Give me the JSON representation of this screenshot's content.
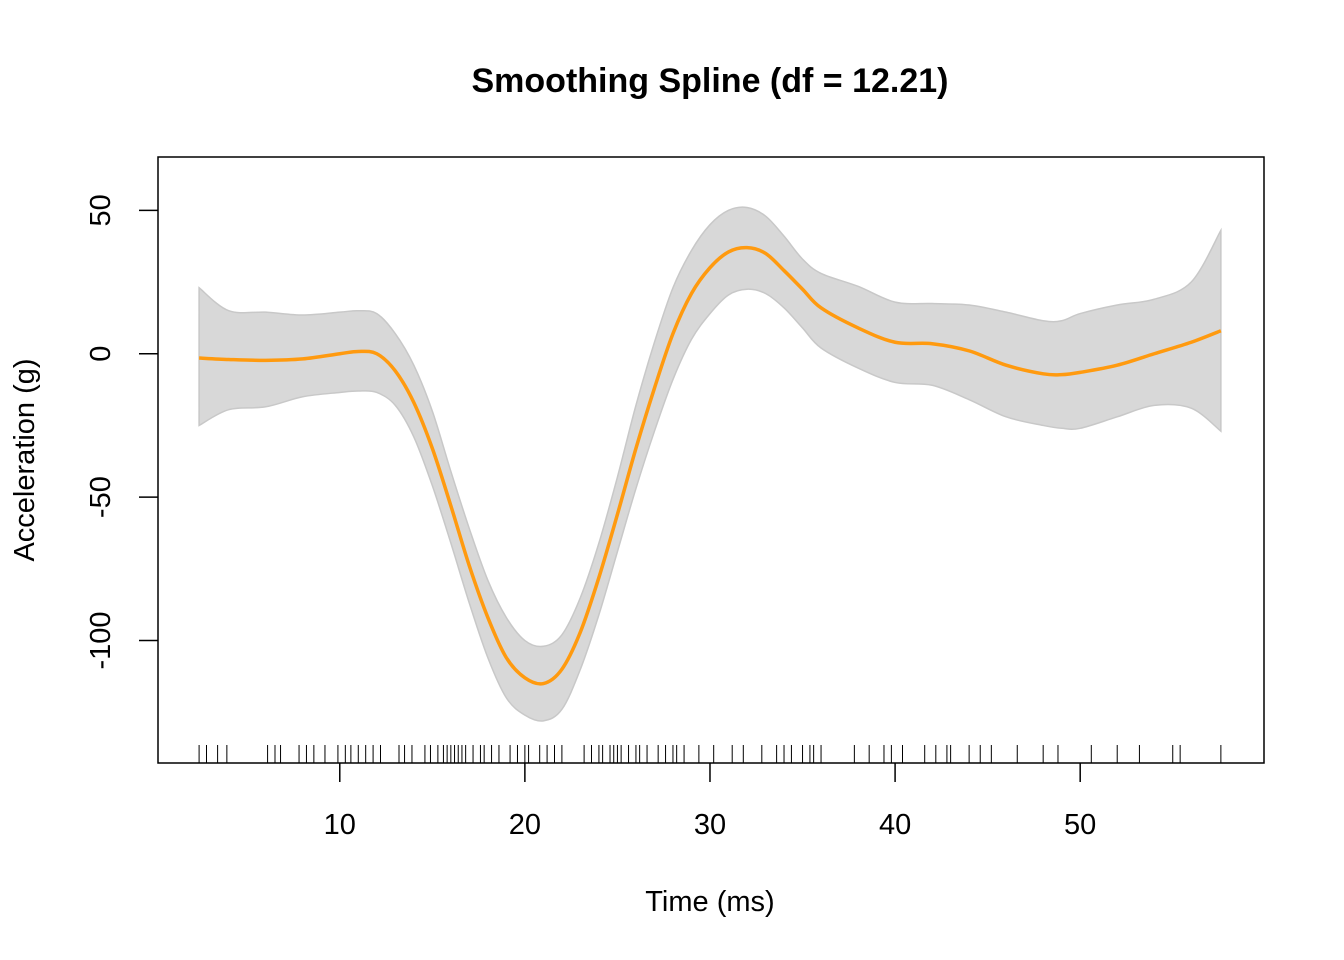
{
  "chart_data": {
    "type": "line",
    "title": "Smoothing Spline (df = 12.21)",
    "xlabel": "Time (ms)",
    "ylabel": "Acceleration (g)",
    "xlim": [
      0.18,
      59.93
    ],
    "ylim": [
      -142.7,
      68.6
    ],
    "x_ticks": [
      10,
      20,
      30,
      40,
      50
    ],
    "y_ticks": [
      -100,
      -50,
      0,
      50
    ],
    "grid": false,
    "legend": "none",
    "colors": {
      "fit": "#FF9A0F",
      "band": "#D8D8D8",
      "band_edge": "#C8C8C8",
      "axis": "#000000"
    },
    "series": [
      {
        "x": [
          2.4,
          4,
          6,
          8,
          10,
          11,
          12,
          13,
          14,
          15,
          16,
          17,
          18,
          19,
          20,
          21,
          22,
          23,
          24,
          25,
          26,
          27,
          28,
          29,
          30,
          31,
          32,
          33,
          34,
          35,
          36,
          38,
          40,
          42,
          44,
          46,
          48,
          49,
          50,
          52,
          54,
          56,
          57.6
        ],
        "y": [
          -1.5,
          -2.0,
          -2.3,
          -1.8,
          0.0,
          0.8,
          0.0,
          -6.0,
          -17.0,
          -33.0,
          -53.0,
          -74.0,
          -92.0,
          -106.0,
          -113.0,
          -115.0,
          -110.0,
          -97.0,
          -78.0,
          -56.0,
          -33.0,
          -12.0,
          7.0,
          21.0,
          30.0,
          35.5,
          37.0,
          35.0,
          29.0,
          22.5,
          16.0,
          9.0,
          4.0,
          3.5,
          1.0,
          -4.0,
          -7.0,
          -7.3,
          -6.5,
          -4.0,
          0.0,
          4.0,
          8.0
        ],
        "upper": [
          23.0,
          15.0,
          14.5,
          13.5,
          14.5,
          15.0,
          14.0,
          7.0,
          -4.0,
          -20.0,
          -41.0,
          -61.0,
          -79.0,
          -92.0,
          -100.0,
          -102.0,
          -98.0,
          -85.0,
          -66.0,
          -43.0,
          -18.0,
          4.0,
          23.0,
          36.0,
          45.0,
          50.0,
          51.0,
          48.0,
          41.0,
          33.0,
          28.0,
          23.5,
          18.0,
          17.5,
          17.0,
          14.5,
          11.5,
          11.5,
          14.0,
          17.0,
          19.0,
          25.0,
          43.0
        ],
        "lower": [
          -25.0,
          -19.5,
          -18.5,
          -15.0,
          -13.5,
          -13.0,
          -13.5,
          -18.0,
          -29.0,
          -46.0,
          -66.0,
          -87.0,
          -106.0,
          -120.0,
          -126.0,
          -128.0,
          -124.0,
          -110.0,
          -91.0,
          -69.0,
          -47.0,
          -27.0,
          -9.0,
          5.0,
          14.0,
          20.5,
          22.5,
          21.0,
          16.0,
          9.0,
          2.0,
          -5.0,
          -10.0,
          -11.0,
          -16.0,
          -22.0,
          -25.0,
          -26.0,
          -26.0,
          -22.0,
          -18.0,
          -19.0,
          -27.0
        ]
      }
    ],
    "rug_x": [
      2.4,
      2.8,
      3.4,
      3.9,
      6.1,
      6.5,
      6.8,
      7.8,
      8.2,
      8.6,
      9.2,
      9.9,
      10.3,
      10.6,
      11.0,
      11.4,
      11.8,
      12.2,
      13.2,
      13.5,
      13.9,
      14.6,
      14.9,
      15.3,
      15.6,
      15.8,
      16.0,
      16.2,
      16.4,
      16.6,
      16.8,
      17.2,
      17.6,
      17.8,
      18.2,
      18.6,
      19.2,
      19.6,
      20.0,
      20.2,
      20.8,
      21.2,
      21.6,
      22.0,
      23.2,
      23.6,
      24.0,
      24.2,
      24.6,
      24.8,
      25.0,
      25.2,
      25.6,
      26.0,
      26.2,
      26.6,
      27.2,
      27.6,
      28.0,
      28.2,
      28.6,
      29.4,
      30.2,
      31.2,
      31.8,
      32.8,
      33.6,
      34.0,
      34.4,
      35.0,
      35.4,
      35.6,
      36.0,
      37.8,
      38.6,
      39.4,
      39.8,
      40.4,
      41.6,
      42.2,
      42.8,
      43.0,
      44.0,
      44.6,
      45.2,
      46.6,
      48.0,
      48.8,
      50.6,
      52.0,
      53.2,
      55.0,
      55.4,
      57.6
    ]
  }
}
